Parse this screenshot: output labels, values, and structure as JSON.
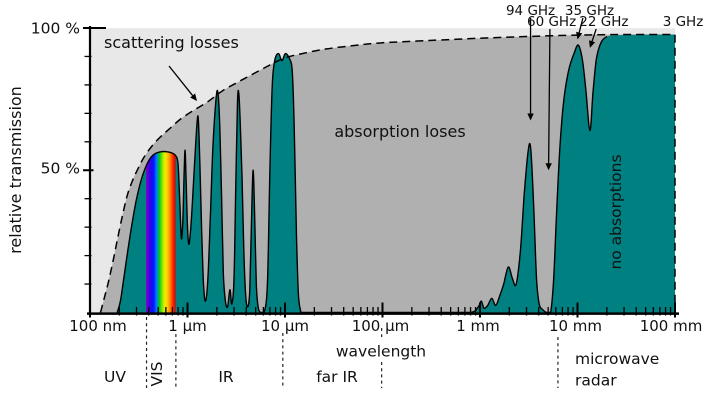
{
  "colors": {
    "background": "#ffffff",
    "scattering_region": "#e8e8e8",
    "absorption_region": "#b0b0b0",
    "transmission_fill": "#008080",
    "outline": "#000000"
  },
  "chart_data": {
    "type": "area",
    "x_axis": {
      "label": "wavelength",
      "scale": "log",
      "unit": "nm",
      "range": [
        100,
        100000000
      ],
      "tick_labels": [
        "100 nm",
        "1 μm",
        "10 μm",
        "100 μm",
        "1 mm",
        "10 mm",
        "100 mm"
      ]
    },
    "y_axis": {
      "label": "relative transmission",
      "unit": "%",
      "range": [
        0,
        100
      ],
      "tick_labels": [
        "100 %",
        "50 %"
      ]
    },
    "regions": {
      "scattering": "scattering losses",
      "absorption": "absorption loses",
      "no_absorption": "no absorptions"
    },
    "bands": [
      {
        "label": "UV",
        "range_nm": [
          100,
          380
        ]
      },
      {
        "label": "VIS",
        "range_nm": [
          380,
          760
        ]
      },
      {
        "label": "IR",
        "range_nm": [
          760,
          9500
        ]
      },
      {
        "label": "far IR",
        "range_nm": [
          9500,
          98000
        ]
      },
      {
        "label": "microwave radar",
        "lines": [
          "microwave",
          "radar"
        ],
        "range_nm": [
          6300000,
          100000000
        ]
      }
    ],
    "separators_nm": [
      380,
      760,
      9500,
      98000,
      6300000
    ],
    "visible_spectrum": {
      "range_nm": [
        380,
        760
      ],
      "gradient": [
        [
          "0",
          "#7d00c8"
        ],
        [
          "0.14",
          "#3000e8"
        ],
        [
          "0.26",
          "#0018ff"
        ],
        [
          "0.36",
          "#0080ff"
        ],
        [
          "0.45",
          "#00c814"
        ],
        [
          "0.54",
          "#7ce600"
        ],
        [
          "0.64",
          "#eef000"
        ],
        [
          "0.73",
          "#ffc800"
        ],
        [
          "0.83",
          "#ff7a00"
        ],
        [
          "0.92",
          "#ff2000"
        ],
        [
          "1",
          "#d40000"
        ]
      ]
    },
    "annotations": [
      {
        "label": "94 GHz",
        "wavelength_nm": 3300000,
        "points_to_percent": 67.5,
        "row": 1,
        "label_dx": 0
      },
      {
        "label": "60 GHz",
        "wavelength_nm": 5050000,
        "points_to_percent": 50,
        "row": 2,
        "label_dx": 3
      },
      {
        "label": "35 GHz",
        "wavelength_nm": 10000000,
        "points_to_percent": 96,
        "row": 1,
        "label_dx": 12
      },
      {
        "label": "22 GHz",
        "wavelength_nm": 13400000,
        "points_to_percent": 93,
        "row": 2,
        "label_dx": 14
      },
      {
        "label": "3 GHz",
        "wavelength_nm": 100000000,
        "points_to_percent": null,
        "row": 2,
        "label_dx": 8
      }
    ],
    "series": [
      {
        "name": "atmospheric transmission",
        "style": "filled",
        "points": [
          [
            190,
            0
          ],
          [
            205,
            4
          ],
          [
            222,
            12
          ],
          [
            245,
            22
          ],
          [
            272,
            32
          ],
          [
            305,
            41
          ],
          [
            345,
            48
          ],
          [
            395,
            53
          ],
          [
            450,
            55.5
          ],
          [
            530,
            56.5
          ],
          [
            620,
            56.5
          ],
          [
            700,
            56
          ],
          [
            760,
            55
          ],
          [
            800,
            52
          ],
          [
            835,
            38
          ],
          [
            865,
            26
          ],
          [
            895,
            32
          ],
          [
            925,
            50
          ],
          [
            945,
            57
          ],
          [
            965,
            48
          ],
          [
            1000,
            30
          ],
          [
            1030,
            24
          ],
          [
            1070,
            28
          ],
          [
            1120,
            38
          ],
          [
            1180,
            52
          ],
          [
            1250,
            66
          ],
          [
            1290,
            68
          ],
          [
            1340,
            52
          ],
          [
            1400,
            28
          ],
          [
            1460,
            10
          ],
          [
            1530,
            4
          ],
          [
            1620,
            12
          ],
          [
            1720,
            35
          ],
          [
            1820,
            58
          ],
          [
            1930,
            72
          ],
          [
            2030,
            78
          ],
          [
            2130,
            68
          ],
          [
            2230,
            42
          ],
          [
            2330,
            14
          ],
          [
            2450,
            4
          ],
          [
            2580,
            2
          ],
          [
            2720,
            8
          ],
          [
            2850,
            3
          ],
          [
            3000,
            12
          ],
          [
            3130,
            45
          ],
          [
            3260,
            74
          ],
          [
            3360,
            77
          ],
          [
            3480,
            66
          ],
          [
            3620,
            48
          ],
          [
            3780,
            22
          ],
          [
            3950,
            6
          ],
          [
            4150,
            2
          ],
          [
            4350,
            8
          ],
          [
            4550,
            35
          ],
          [
            4720,
            50
          ],
          [
            4900,
            32
          ],
          [
            5080,
            10
          ],
          [
            5300,
            2
          ],
          [
            5600,
            0
          ],
          [
            6100,
            0
          ],
          [
            6600,
            10
          ],
          [
            7000,
            50
          ],
          [
            7400,
            80
          ],
          [
            7900,
            89
          ],
          [
            8600,
            91
          ],
          [
            9300,
            88.5
          ],
          [
            10100,
            91
          ],
          [
            11200,
            89
          ],
          [
            11900,
            84
          ],
          [
            12500,
            62
          ],
          [
            13100,
            28
          ],
          [
            13700,
            7
          ],
          [
            14400,
            1
          ],
          [
            15500,
            0
          ],
          [
            30000,
            0
          ],
          [
            100000,
            0
          ],
          [
            400000,
            0
          ],
          [
            800000,
            0
          ],
          [
            960000,
            2
          ],
          [
            1030000,
            4
          ],
          [
            1100000,
            1.5
          ],
          [
            1200000,
            2.5
          ],
          [
            1320000,
            5
          ],
          [
            1450000,
            2.5
          ],
          [
            1600000,
            6
          ],
          [
            1750000,
            10
          ],
          [
            1950000,
            16
          ],
          [
            2150000,
            12
          ],
          [
            2350000,
            10
          ],
          [
            2600000,
            22
          ],
          [
            2850000,
            42
          ],
          [
            3100000,
            56
          ],
          [
            3300000,
            58
          ],
          [
            3550000,
            38
          ],
          [
            3800000,
            12
          ],
          [
            4050000,
            3
          ],
          [
            4400000,
            1
          ],
          [
            4800000,
            0
          ],
          [
            5300000,
            0
          ],
          [
            5700000,
            12
          ],
          [
            6100000,
            35
          ],
          [
            6600000,
            58
          ],
          [
            7200000,
            74
          ],
          [
            8100000,
            85
          ],
          [
            9200000,
            91
          ],
          [
            10200000,
            94
          ],
          [
            11200000,
            89
          ],
          [
            12200000,
            78
          ],
          [
            13400000,
            64
          ],
          [
            14400000,
            77
          ],
          [
            15600000,
            89
          ],
          [
            17500000,
            95
          ],
          [
            20000000,
            97
          ],
          [
            28000000,
            97.5
          ],
          [
            50000000,
            97.7
          ],
          [
            100000000,
            97.7
          ]
        ]
      },
      {
        "name": "scattering loss boundary",
        "style": "dashed",
        "points": [
          [
            128,
            0
          ],
          [
            140,
            5
          ],
          [
            155,
            11
          ],
          [
            172,
            18
          ],
          [
            192,
            26
          ],
          [
            215,
            34
          ],
          [
            240,
            41
          ],
          [
            270,
            46
          ],
          [
            305,
            50
          ],
          [
            350,
            54
          ],
          [
            420,
            58
          ],
          [
            520,
            61.5
          ],
          [
            650,
            64.5
          ],
          [
            850,
            68
          ],
          [
            1150,
            71
          ],
          [
            1600,
            74
          ],
          [
            2300,
            78
          ],
          [
            3300,
            81
          ],
          [
            4800,
            84
          ],
          [
            7000,
            87
          ],
          [
            10000,
            89.5
          ],
          [
            15000,
            91
          ],
          [
            25000,
            92.5
          ],
          [
            50000,
            93.8
          ],
          [
            100000,
            94.8
          ],
          [
            300000,
            95.6
          ],
          [
            1000000,
            96.4
          ],
          [
            3000000,
            97
          ],
          [
            10000000,
            97.5
          ],
          [
            30000000,
            97.7
          ],
          [
            100000000,
            97.7
          ]
        ]
      }
    ]
  }
}
